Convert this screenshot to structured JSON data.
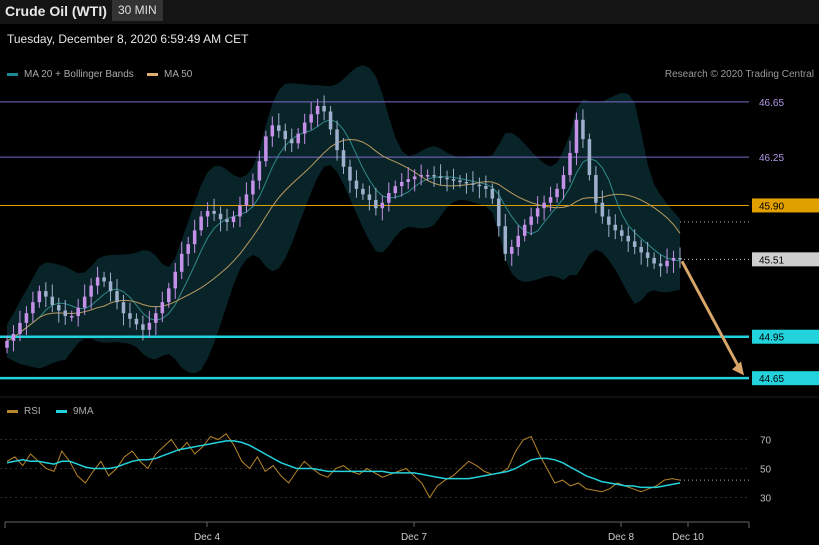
{
  "header": {
    "title": "Crude Oil (WTI)",
    "timeframe": "30 MIN"
  },
  "datetime": "Tuesday, December 8, 2020 6:59:49 AM CET",
  "legend": {
    "main": [
      {
        "label": "MA 20 + Bollinger Bands",
        "color": "#1b8a96"
      },
      {
        "label": "MA 50",
        "color": "#e0b070"
      }
    ],
    "rsi": [
      {
        "label": "RSI",
        "color": "#b8862a"
      },
      {
        "label": "9MA",
        "color": "#22d3dd"
      }
    ]
  },
  "credit": "Research © 2020 Trading Central",
  "colors": {
    "up": "#c590e8",
    "down": "#9fb0cc",
    "bb_fill": "#0b2a30",
    "ma20": "#2e8a8a",
    "ma50": "#b89a60",
    "resistance": "#7c6bc9",
    "pivot": "#e0a000",
    "support": "#22d3dd",
    "arrow": "#d8a56a",
    "current": "#cfcfcf"
  },
  "chart_data": [
    {
      "type": "candlestick",
      "title": "Crude Oil (WTI)",
      "timeframe": "30 MIN",
      "x_ticks": [
        "Dec 4",
        "Dec 7",
        "Dec 8",
        "Dec 10"
      ],
      "y_range": [
        44.55,
        46.75
      ],
      "levels": [
        {
          "value": 46.65,
          "label": "46.65",
          "kind": "resistance"
        },
        {
          "value": 46.25,
          "label": "46.25",
          "kind": "resistance"
        },
        {
          "value": 45.9,
          "label": "45.90",
          "kind": "pivot"
        },
        {
          "value": 45.51,
          "label": "45.51",
          "kind": "current"
        },
        {
          "value": 44.95,
          "label": "44.95",
          "kind": "support"
        },
        {
          "value": 44.65,
          "label": "44.65",
          "kind": "support"
        }
      ],
      "close_series": [
        44.92,
        44.97,
        45.05,
        45.12,
        45.2,
        45.28,
        45.24,
        45.18,
        45.14,
        45.1,
        45.1,
        45.16,
        45.24,
        45.32,
        45.38,
        45.35,
        45.28,
        45.2,
        45.12,
        45.08,
        45.04,
        45.0,
        45.05,
        45.12,
        45.2,
        45.3,
        45.42,
        45.55,
        45.62,
        45.72,
        45.82,
        45.86,
        45.84,
        45.8,
        45.78,
        45.82,
        45.9,
        45.98,
        46.08,
        46.22,
        46.4,
        46.48,
        46.44,
        46.38,
        46.35,
        46.42,
        46.5,
        46.56,
        46.62,
        46.58,
        46.45,
        46.3,
        46.18,
        46.08,
        46.02,
        45.98,
        45.94,
        45.88,
        45.92,
        45.99,
        46.04,
        46.07,
        46.09,
        46.11,
        46.12,
        46.12,
        46.11,
        46.1,
        46.09,
        46.08,
        46.07,
        46.06,
        46.05,
        46.04,
        46.02,
        45.95,
        45.75,
        45.55,
        45.6,
        45.68,
        45.76,
        45.82,
        45.88,
        45.92,
        45.96,
        46.02,
        46.12,
        46.28,
        46.52,
        46.38,
        46.12,
        45.92,
        45.82,
        45.76,
        45.72,
        45.68,
        45.64,
        45.6,
        45.56,
        45.52,
        45.48,
        45.46,
        45.5,
        45.52,
        45.51
      ],
      "rsi": {
        "y_ticks": [
          70,
          50,
          30
        ],
        "y_range": [
          20,
          80
        ],
        "rsi_series": [
          55,
          58,
          52,
          60,
          55,
          50,
          48,
          62,
          55,
          45,
          40,
          48,
          55,
          45,
          50,
          58,
          62,
          55,
          50,
          60,
          65,
          70,
          62,
          68,
          60,
          65,
          72,
          70,
          74,
          66,
          55,
          50,
          58,
          48,
          52,
          45,
          40,
          48,
          55,
          50,
          46,
          44,
          50,
          52,
          48,
          46,
          50,
          47,
          44,
          46,
          48,
          50,
          45,
          40,
          30,
          38,
          42,
          45,
          50,
          55,
          52,
          48,
          46,
          47,
          50,
          62,
          70,
          72,
          60,
          50,
          40,
          42,
          38,
          40,
          36,
          35,
          34,
          36,
          40,
          38,
          36,
          34,
          36,
          38,
          42,
          43,
          42
        ],
        "ma9_series": [
          54,
          55,
          56,
          55,
          55,
          54,
          53,
          55,
          55,
          53,
          51,
          50,
          50,
          50,
          51,
          53,
          55,
          56,
          56,
          57,
          59,
          61,
          63,
          64,
          65,
          66,
          67,
          68,
          69,
          69,
          68,
          66,
          63,
          60,
          57,
          54,
          52,
          50,
          50,
          50,
          49,
          48,
          48,
          48,
          48,
          48,
          48,
          48,
          48,
          47,
          47,
          47,
          47,
          46,
          45,
          44,
          43,
          43,
          43,
          43,
          44,
          45,
          46,
          47,
          48,
          50,
          53,
          56,
          57,
          57,
          56,
          54,
          51,
          48,
          45,
          43,
          41,
          40,
          39,
          38,
          38,
          37,
          37,
          37,
          38,
          39,
          40
        ]
      }
    }
  ]
}
